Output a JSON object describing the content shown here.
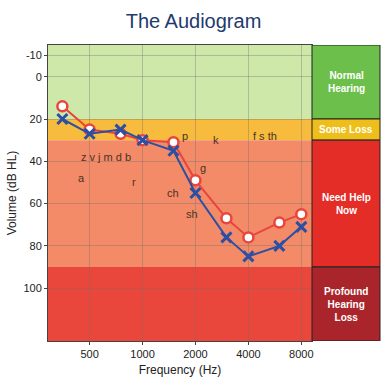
{
  "chart_data": {
    "type": "line",
    "title": "The Audiogram",
    "x_label": "Frequency (Hz)",
    "y_label": "Volume (dB HL)",
    "log": "x",
    "grid": true,
    "x": [
      350,
      500,
      750,
      1000,
      1500,
      2000,
      3000,
      4000,
      6000,
      8000
    ],
    "xlim": [
      290,
      9200
    ],
    "xticks": [
      500,
      1000,
      2000,
      4000,
      8000
    ],
    "ylim": [
      -15,
      125
    ],
    "yticks": [
      -10,
      0,
      20,
      40,
      60,
      80,
      100
    ],
    "series": [
      {
        "color": "#e8453c",
        "marker": "circle",
        "values": [
          14,
          25,
          27,
          30,
          31,
          49,
          67,
          76,
          69,
          65
        ]
      },
      {
        "color": "#2d4fa3",
        "marker": "x",
        "values": [
          20,
          27,
          25,
          30,
          35,
          55,
          76,
          85,
          80,
          71
        ]
      }
    ],
    "zones": [
      {
        "label": "Normal Hearing",
        "from": -15,
        "to": 20,
        "colors": [
          "#cde8a8",
          "#6cbf4a"
        ]
      },
      {
        "label": "Some Loss",
        "from": 20,
        "to": 30,
        "colors": [
          "#f7bb3d",
          "#eebf1b"
        ]
      },
      {
        "label": "Need Help Now",
        "from": 30,
        "to": 90,
        "colors": [
          "#f38a68",
          "#e52d27"
        ]
      },
      {
        "label": "Profound Hearing Loss",
        "from": 90,
        "to": 125,
        "colors": [
          "#e9473c",
          "#a9252b"
        ]
      }
    ],
    "annotations": [
      {
        "text": "z v j m d b",
        "x": 620,
        "y": 38
      },
      {
        "text": "a",
        "x": 450,
        "y": 48
      },
      {
        "text": "r",
        "x": 900,
        "y": 50
      },
      {
        "text": "p",
        "x": 1750,
        "y": 28
      },
      {
        "text": "ch",
        "x": 1500,
        "y": 55
      },
      {
        "text": "sh",
        "x": 1900,
        "y": 65
      },
      {
        "text": "g",
        "x": 2200,
        "y": 43
      },
      {
        "text": "k",
        "x": 2600,
        "y": 30
      },
      {
        "text": "f s th",
        "x": 5000,
        "y": 28
      }
    ]
  }
}
